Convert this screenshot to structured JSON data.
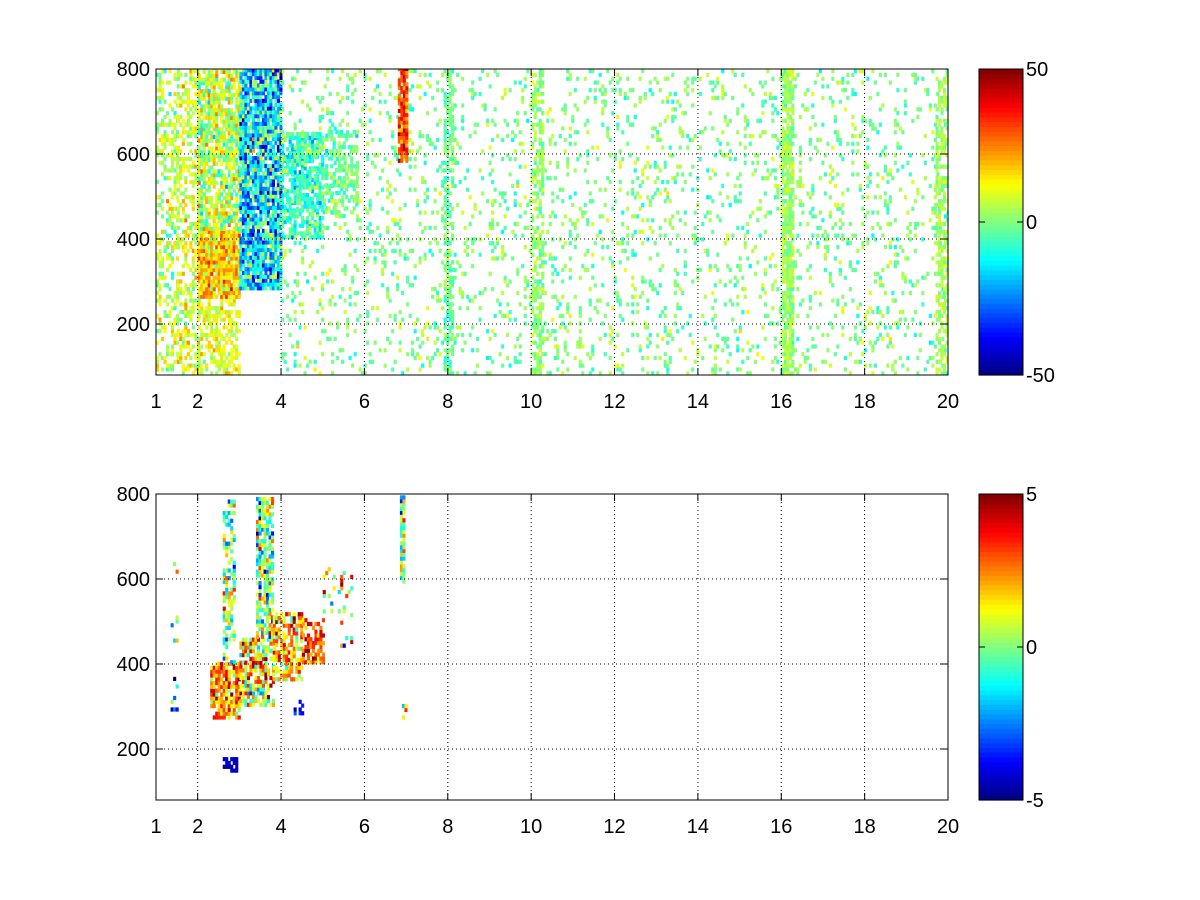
{
  "figure": {
    "background": "#ffffff"
  },
  "chart_data": [
    {
      "type": "heatmap",
      "panel": "top",
      "title": "",
      "xlabel": "",
      "ylabel": "",
      "xlim": [
        1,
        20
      ],
      "ylim": [
        80,
        800
      ],
      "x_ticks": [
        1,
        2,
        4,
        6,
        8,
        10,
        12,
        14,
        16,
        18,
        20
      ],
      "x_tick_labels": [
        "1",
        "2",
        "4",
        "6",
        "8",
        "10",
        "12",
        "14",
        "16",
        "18",
        "20"
      ],
      "y_ticks": [
        200,
        400,
        600,
        800
      ],
      "y_tick_labels": [
        "200",
        "400",
        "600",
        "800"
      ],
      "grid": true,
      "colormap": "jet",
      "clim": [
        -50,
        50
      ],
      "colorbar_ticks": [
        -50,
        0,
        50
      ],
      "colorbar_tick_labels": [
        "-50",
        "0",
        "50"
      ],
      "value_density": [
        {
          "x": [
            1.0,
            1.5
          ],
          "y": [
            80,
            800
          ],
          "density": 0.35,
          "mean": 5,
          "sd": 10
        },
        {
          "x": [
            1.5,
            2.0
          ],
          "y": [
            80,
            800
          ],
          "density": 0.45,
          "mean": 8,
          "sd": 10
        },
        {
          "x": [
            2.0,
            3.0
          ],
          "y": [
            80,
            260
          ],
          "density": 0.55,
          "mean": 10,
          "sd": 8
        },
        {
          "x": [
            2.0,
            3.0
          ],
          "y": [
            260,
            420
          ],
          "density": 0.95,
          "mean": 18,
          "sd": 12
        },
        {
          "x": [
            2.0,
            3.0
          ],
          "y": [
            420,
            800
          ],
          "density": 0.75,
          "mean": 6,
          "sd": 14
        },
        {
          "x": [
            3.0,
            4.0
          ],
          "y": [
            280,
            800
          ],
          "density": 0.9,
          "mean": -15,
          "sd": 20
        },
        {
          "x": [
            4.0,
            5.0
          ],
          "y": [
            400,
            650
          ],
          "density": 0.7,
          "mean": -8,
          "sd": 10
        },
        {
          "x": [
            5.0,
            5.8
          ],
          "y": [
            450,
            650
          ],
          "density": 0.4,
          "mean": -3,
          "sd": 8
        },
        {
          "x": [
            4.0,
            20.0
          ],
          "y": [
            80,
            800
          ],
          "density": 0.12,
          "mean": 0,
          "sd": 8
        },
        {
          "x": [
            6.8,
            7.0
          ],
          "y": [
            580,
            800
          ],
          "density": 0.9,
          "mean": 32,
          "sd": 10
        },
        {
          "x": [
            7.9,
            8.1
          ],
          "y": [
            80,
            800
          ],
          "density": 0.5,
          "mean": -2,
          "sd": 6
        },
        {
          "x": [
            10.0,
            10.3
          ],
          "y": [
            80,
            800
          ],
          "density": 0.5,
          "mean": 2,
          "sd": 6
        },
        {
          "x": [
            16.0,
            16.3
          ],
          "y": [
            80,
            800
          ],
          "density": 0.8,
          "mean": 3,
          "sd": 6
        },
        {
          "x": [
            19.7,
            20.0
          ],
          "y": [
            80,
            800
          ],
          "density": 0.5,
          "mean": 4,
          "sd": 6
        }
      ]
    },
    {
      "type": "heatmap",
      "panel": "bottom",
      "title": "",
      "xlabel": "",
      "ylabel": "",
      "xlim": [
        1,
        20
      ],
      "ylim": [
        80,
        800
      ],
      "x_ticks": [
        1,
        2,
        4,
        6,
        8,
        10,
        12,
        14,
        16,
        18,
        20
      ],
      "x_tick_labels": [
        "1",
        "2",
        "4",
        "6",
        "8",
        "10",
        "12",
        "14",
        "16",
        "18",
        "20"
      ],
      "y_ticks": [
        200,
        400,
        600,
        800
      ],
      "y_tick_labels": [
        "200",
        "400",
        "600",
        "800"
      ],
      "grid": true,
      "colormap": "jet",
      "clim": [
        -5,
        5
      ],
      "colorbar_ticks": [
        -5,
        0,
        5
      ],
      "colorbar_tick_labels": [
        "-5",
        "0",
        "5"
      ],
      "value_density": [
        {
          "x": [
            2.3,
            3.0
          ],
          "y": [
            270,
            400
          ],
          "density": 0.85,
          "mean": 2.5,
          "sd": 1.8
        },
        {
          "x": [
            2.6,
            2.9
          ],
          "y": [
            400,
            780
          ],
          "density": 0.55,
          "mean": 0,
          "sd": 2.5
        },
        {
          "x": [
            3.0,
            3.8
          ],
          "y": [
            300,
            460
          ],
          "density": 0.7,
          "mean": 1.5,
          "sd": 2.5
        },
        {
          "x": [
            3.4,
            3.8
          ],
          "y": [
            460,
            790
          ],
          "density": 0.7,
          "mean": 0,
          "sd": 2.8
        },
        {
          "x": [
            3.8,
            4.5
          ],
          "y": [
            360,
            520
          ],
          "density": 0.6,
          "mean": 2,
          "sd": 2
        },
        {
          "x": [
            4.5,
            5.0
          ],
          "y": [
            400,
            500
          ],
          "density": 0.5,
          "mean": 3,
          "sd": 1.5
        },
        {
          "x": [
            5.0,
            5.7
          ],
          "y": [
            430,
            620
          ],
          "density": 0.12,
          "mean": 1,
          "sd": 3
        },
        {
          "x": [
            2.6,
            2.95
          ],
          "y": [
            145,
            175
          ],
          "density": 0.8,
          "mean": -4.5,
          "sd": 0.3
        },
        {
          "x": [
            6.85,
            6.95
          ],
          "y": [
            590,
            790
          ],
          "density": 0.95,
          "mean": 0,
          "sd": 2.5
        },
        {
          "x": [
            6.9,
            7.0
          ],
          "y": [
            270,
            310
          ],
          "density": 0.5,
          "mean": 0,
          "sd": 4
        },
        {
          "x": [
            1.35,
            1.5
          ],
          "y": [
            100,
            700
          ],
          "density": 0.06,
          "mean": 0,
          "sd": 4
        },
        {
          "x": [
            4.3,
            4.5
          ],
          "y": [
            280,
            320
          ],
          "density": 0.3,
          "mean": -4,
          "sd": 0.5
        }
      ]
    }
  ]
}
